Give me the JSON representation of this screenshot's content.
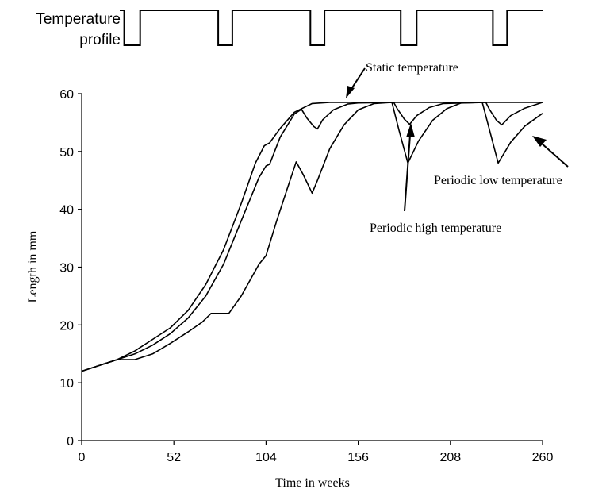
{
  "chart_data": {
    "type": "line",
    "xlabel": "Time in weeks",
    "ylabel": "Length in mm",
    "xlim": [
      0,
      260
    ],
    "ylim": [
      0,
      60
    ],
    "xticks": [
      0,
      52,
      104,
      156,
      208,
      260
    ],
    "yticks": [
      0,
      10,
      20,
      30,
      40,
      50,
      60
    ],
    "grid": false,
    "profile": {
      "label_line1": "Temperature",
      "label_line2": "profile",
      "pulses": [
        {
          "start": 24,
          "end": 33
        },
        {
          "start": 77,
          "end": 85
        },
        {
          "start": 129,
          "end": 137
        },
        {
          "start": 180,
          "end": 189
        },
        {
          "start": 232,
          "end": 240
        }
      ]
    },
    "series": [
      {
        "name": "Static temperature",
        "points": [
          [
            0,
            12
          ],
          [
            20,
            14
          ],
          [
            30,
            15.5
          ],
          [
            40,
            17.5
          ],
          [
            50,
            19.5
          ],
          [
            60,
            22.5
          ],
          [
            70,
            27
          ],
          [
            80,
            33
          ],
          [
            90,
            41
          ],
          [
            98,
            48
          ],
          [
            103,
            51
          ],
          [
            106,
            51.5
          ],
          [
            112,
            54
          ],
          [
            120,
            56.8
          ],
          [
            130,
            58.3
          ],
          [
            140,
            58.5
          ],
          [
            260,
            58.5
          ]
        ]
      },
      {
        "name": "Periodic high temperature",
        "points": [
          [
            0,
            12
          ],
          [
            20,
            14
          ],
          [
            25,
            14.5
          ],
          [
            30,
            15
          ],
          [
            40,
            16.5
          ],
          [
            50,
            18.5
          ],
          [
            60,
            21.2
          ],
          [
            70,
            25
          ],
          [
            80,
            30.5
          ],
          [
            90,
            38
          ],
          [
            100,
            45.5
          ],
          [
            104,
            47.5
          ],
          [
            106,
            47.8
          ],
          [
            112,
            52.5
          ],
          [
            120,
            56.5
          ],
          [
            124,
            57.3
          ],
          [
            127,
            55.8
          ],
          [
            131,
            54.3
          ],
          [
            133,
            53.9
          ],
          [
            136,
            55.5
          ],
          [
            142,
            57.2
          ],
          [
            150,
            58.2
          ],
          [
            156,
            58.4
          ],
          [
            176,
            58.5
          ],
          [
            178,
            57.4
          ],
          [
            182,
            55.6
          ],
          [
            185,
            54.7
          ],
          [
            189,
            56.2
          ],
          [
            196,
            57.6
          ],
          [
            204,
            58.3
          ],
          [
            228,
            58.5
          ],
          [
            230,
            57.3
          ],
          [
            234,
            55.4
          ],
          [
            237,
            54.6
          ],
          [
            242,
            56.2
          ],
          [
            250,
            57.5
          ],
          [
            257,
            58.2
          ],
          [
            260,
            58.5
          ]
        ]
      },
      {
        "name": "Periodic low temperature",
        "points": [
          [
            0,
            12
          ],
          [
            20,
            14
          ],
          [
            30,
            14
          ],
          [
            40,
            15
          ],
          [
            50,
            16.8
          ],
          [
            60,
            18.8
          ],
          [
            68,
            20.5
          ],
          [
            73,
            22
          ],
          [
            83,
            22
          ],
          [
            90,
            25
          ],
          [
            100,
            30.5
          ],
          [
            104,
            32
          ],
          [
            110,
            38
          ],
          [
            117,
            44.5
          ],
          [
            121,
            48.2
          ],
          [
            125,
            46
          ],
          [
            130,
            42.8
          ],
          [
            133,
            45
          ],
          [
            140,
            50.5
          ],
          [
            148,
            54.6
          ],
          [
            156,
            57.2
          ],
          [
            165,
            58.3
          ],
          [
            175,
            58.5
          ],
          [
            179,
            53.7
          ],
          [
            184,
            48
          ],
          [
            190,
            51.8
          ],
          [
            198,
            55.4
          ],
          [
            206,
            57.4
          ],
          [
            214,
            58.4
          ],
          [
            226,
            58.5
          ],
          [
            230,
            53.8
          ],
          [
            235,
            48
          ],
          [
            242,
            51.6
          ],
          [
            250,
            54.4
          ],
          [
            260,
            56.6
          ]
        ]
      }
    ],
    "annotations": [
      {
        "text": "Static temperature"
      },
      {
        "text": "Periodic high temperature"
      },
      {
        "text": "Periodic low temperature"
      }
    ]
  }
}
